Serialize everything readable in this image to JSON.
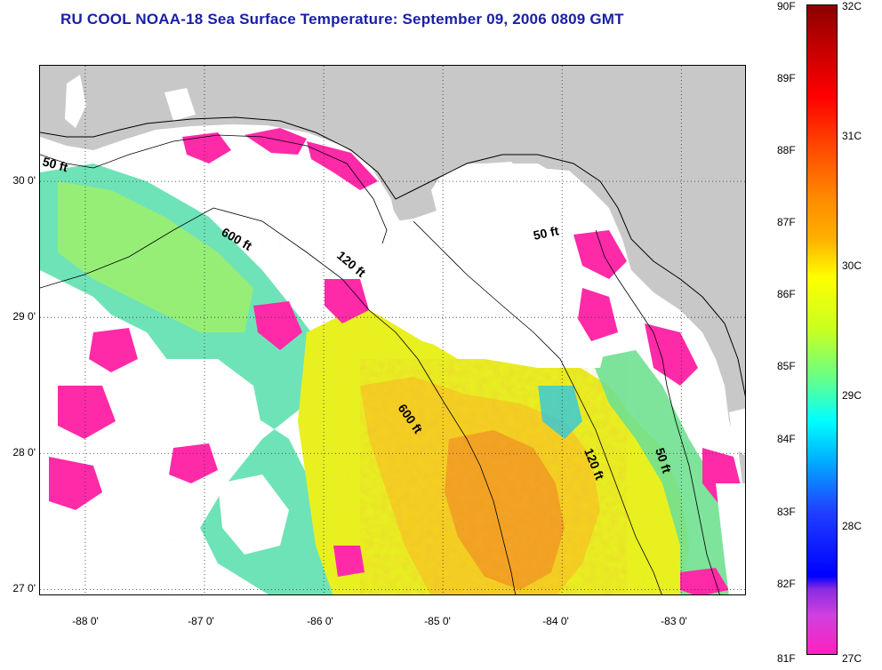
{
  "title": "RU COOL  NOAA-18  Sea Surface Temperature:  September 09, 2006 0809 GMT",
  "map": {
    "lat_labels": [
      "30 0'",
      "29 0'",
      "28 0'",
      "27 0'"
    ],
    "lat_values": [
      30,
      29,
      28,
      27
    ],
    "lon_labels": [
      "-88 0'",
      "-87 0'",
      "-86 0'",
      "-85 0'",
      "-84 0'",
      "-83 0'"
    ],
    "lon_values": [
      -88,
      -87,
      -86,
      -85,
      -84,
      -83
    ],
    "lat_range": [
      26.95,
      30.85
    ],
    "lon_range": [
      -88.38,
      -82.45
    ],
    "contours": [
      {
        "label": "50 ft"
      },
      {
        "label": "600 ft"
      },
      {
        "label": "120 ft"
      },
      {
        "label": "50 ft"
      },
      {
        "label": "600 ft"
      },
      {
        "label": "120 ft"
      },
      {
        "label": "50 ft"
      }
    ],
    "colors": {
      "land": "#c8c8c8",
      "cloud": "#ffffff",
      "grid": "#404040"
    }
  },
  "colorbar": {
    "f_labels": [
      "90F",
      "89F",
      "88F",
      "87F",
      "86F",
      "85F",
      "84F",
      "83F",
      "82F",
      "81F"
    ],
    "c_labels": [
      "32C",
      "31C",
      "30C",
      "29C",
      "28C",
      "27C"
    ],
    "f_range": [
      81,
      90
    ],
    "c_range": [
      27,
      32
    ]
  }
}
